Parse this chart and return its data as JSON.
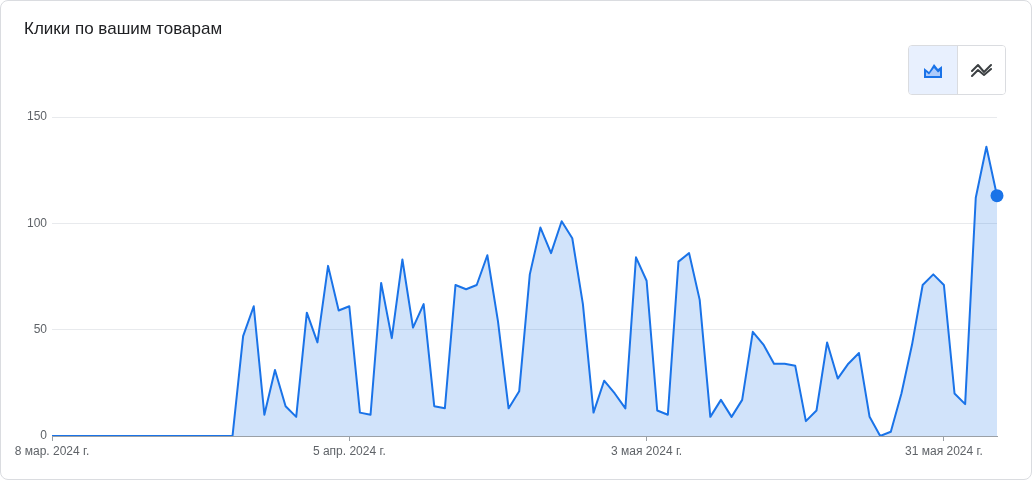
{
  "chart_data": {
    "type": "area",
    "title": "Клики по вашим товарам",
    "x": [
      "2024-03-08",
      "2024-03-09",
      "2024-03-10",
      "2024-03-11",
      "2024-03-12",
      "2024-03-13",
      "2024-03-14",
      "2024-03-15",
      "2024-03-16",
      "2024-03-17",
      "2024-03-18",
      "2024-03-19",
      "2024-03-20",
      "2024-03-21",
      "2024-03-22",
      "2024-03-23",
      "2024-03-24",
      "2024-03-25",
      "2024-03-26",
      "2024-03-27",
      "2024-03-28",
      "2024-03-29",
      "2024-03-30",
      "2024-03-31",
      "2024-04-01",
      "2024-04-02",
      "2024-04-03",
      "2024-04-04",
      "2024-04-05",
      "2024-04-06",
      "2024-04-07",
      "2024-04-08",
      "2024-04-09",
      "2024-04-10",
      "2024-04-11",
      "2024-04-12",
      "2024-04-13",
      "2024-04-14",
      "2024-04-15",
      "2024-04-16",
      "2024-04-17",
      "2024-04-18",
      "2024-04-19",
      "2024-04-20",
      "2024-04-21",
      "2024-04-22",
      "2024-04-23",
      "2024-04-24",
      "2024-04-25",
      "2024-04-26",
      "2024-04-27",
      "2024-04-28",
      "2024-04-29",
      "2024-04-30",
      "2024-05-01",
      "2024-05-02",
      "2024-05-03",
      "2024-05-04",
      "2024-05-05",
      "2024-05-06",
      "2024-05-07",
      "2024-05-08",
      "2024-05-09",
      "2024-05-10",
      "2024-05-11",
      "2024-05-12",
      "2024-05-13",
      "2024-05-14",
      "2024-05-15",
      "2024-05-16",
      "2024-05-17",
      "2024-05-18",
      "2024-05-19",
      "2024-05-20",
      "2024-05-21",
      "2024-05-22",
      "2024-05-23",
      "2024-05-24",
      "2024-05-25",
      "2024-05-26",
      "2024-05-27",
      "2024-05-28",
      "2024-05-29",
      "2024-05-30",
      "2024-05-31",
      "2024-06-01",
      "2024-06-02",
      "2024-06-03",
      "2024-06-04",
      "2024-06-05"
    ],
    "series": [
      {
        "color": "#1a73e8",
        "values": [
          0,
          0,
          0,
          0,
          0,
          0,
          0,
          0,
          0,
          0,
          0,
          0,
          0,
          0,
          0,
          0,
          0,
          0,
          47,
          61,
          10,
          31,
          14,
          9,
          58,
          44,
          80,
          59,
          61,
          11,
          10,
          72,
          46,
          83,
          51,
          62,
          14,
          13,
          71,
          69,
          71,
          85,
          54,
          13,
          21,
          76,
          98,
          86,
          101,
          93,
          62,
          11,
          26,
          20,
          13,
          84,
          73,
          12,
          10,
          82,
          86,
          64,
          9,
          17,
          9,
          17,
          49,
          43,
          34,
          34,
          33,
          7,
          12,
          44,
          27,
          34,
          39,
          9,
          0,
          2,
          20,
          43,
          71,
          76,
          71,
          20,
          15,
          112,
          136,
          113
        ]
      },
      {
        "type": "scatter",
        "color": "#1a73e8",
        "marker": "circle",
        "x": [
          "2024-06-05"
        ],
        "values": [
          113
        ]
      }
    ],
    "xlim": [
      "2024-03-08",
      "2024-06-05"
    ],
    "xticks": [
      {
        "value": "2024-03-08",
        "label": "8 мар. 2024 г."
      },
      {
        "value": "2024-04-05",
        "label": "5 апр. 2024 г."
      },
      {
        "value": "2024-05-03",
        "label": "3 мая 2024 г."
      },
      {
        "value": "2024-05-31",
        "label": "31 мая 2024 г."
      }
    ],
    "ylim": [
      0,
      150
    ],
    "yticks": [
      0,
      50,
      100,
      150
    ],
    "grid": "y"
  }
}
